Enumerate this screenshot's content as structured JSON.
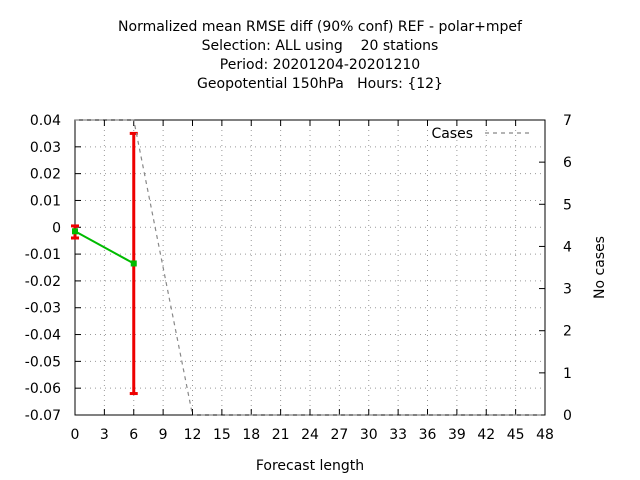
{
  "titles": [
    "Normalized mean RMSE diff (90% conf) REF - polar+mpef",
    "Selection: ALL using    20 stations",
    "Period: 20201204-20201210",
    "Geopotential 150hPa   Hours: {12}"
  ],
  "chart_data": {
    "type": "line",
    "xlabel": "Forecast length",
    "ylabel": "",
    "y2label": "No cases",
    "xlim": [
      0,
      48
    ],
    "ylim": [
      -0.07,
      0.04
    ],
    "y2lim": [
      0,
      7
    ],
    "x_ticks": [
      "0",
      "3",
      "6",
      "9",
      "12",
      "15",
      "18",
      "21",
      "24",
      "27",
      "30",
      "33",
      "36",
      "39",
      "42",
      "45",
      "48"
    ],
    "y_ticks": [
      "0.04",
      "0.03",
      "0.02",
      "0.01",
      "0",
      "-0.01",
      "-0.02",
      "-0.03",
      "-0.04",
      "-0.05",
      "-0.06",
      "-0.07"
    ],
    "y2_ticks": [
      "7",
      "6",
      "5",
      "4",
      "3",
      "2",
      "1",
      "0"
    ],
    "grid": true,
    "legend_position": "top-right",
    "series": [
      {
        "name": "",
        "axis": "left",
        "color": "#00bb00",
        "x": [
          0,
          6
        ],
        "y": [
          -0.0015,
          -0.0135
        ],
        "error_low": [
          -0.004,
          -0.062
        ],
        "error_high": [
          0.0005,
          0.035
        ],
        "error_color": "#ee0000"
      },
      {
        "name": "Cases",
        "axis": "right",
        "color": "#888888",
        "style": "dashed",
        "x": [
          0,
          3,
          6,
          9,
          12,
          15,
          18,
          21,
          24,
          27,
          30,
          33,
          36,
          39,
          42,
          45,
          48
        ],
        "y": [
          7,
          7,
          7,
          3.5,
          0,
          0,
          0,
          0,
          0,
          0,
          0,
          0,
          0,
          0,
          0,
          0,
          0
        ]
      }
    ]
  }
}
